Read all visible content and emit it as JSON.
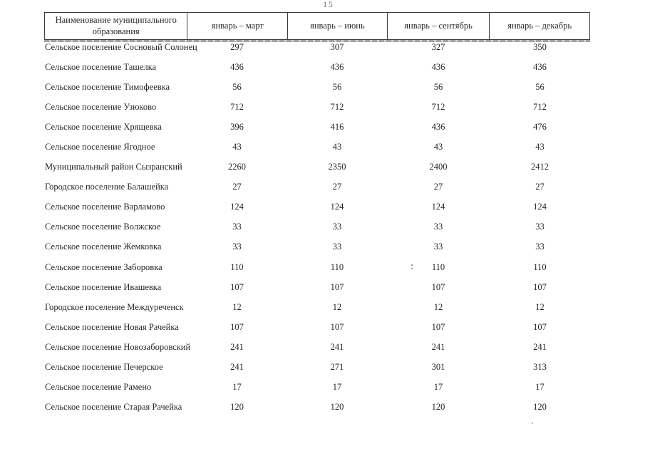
{
  "page": {
    "number": "15"
  },
  "table": {
    "columns": [
      "Наименование муниципального образования",
      "январь – март",
      "январь – июнь",
      "январь – сентябрь",
      "январь – декабрь"
    ],
    "rows": [
      {
        "name": "Сельское поселение Сосновый Солонец",
        "values": [
          "297",
          "307",
          "327",
          "350"
        ]
      },
      {
        "name": "Сельское поселение Ташелка",
        "values": [
          "436",
          "436",
          "436",
          "436"
        ]
      },
      {
        "name": "Сельское поселение Тимофеевка",
        "values": [
          "56",
          "56",
          "56",
          "56"
        ]
      },
      {
        "name": "Сельское поселение Узюково",
        "values": [
          "712",
          "712",
          "712",
          "712"
        ]
      },
      {
        "name": "Сельское поселение Хрящевка",
        "values": [
          "396",
          "416",
          "436",
          "476"
        ]
      },
      {
        "name": "Сельское поселение Ягодное",
        "values": [
          "43",
          "43",
          "43",
          "43"
        ]
      },
      {
        "name": "Муниципальный район Сызранский",
        "values": [
          "2260",
          "2350",
          "2400",
          "2412"
        ]
      },
      {
        "name": "Городское поселение Балашейка",
        "values": [
          "27",
          "27",
          "27",
          "27"
        ]
      },
      {
        "name": "Сельское поселение Варламово",
        "values": [
          "124",
          "124",
          "124",
          "124"
        ]
      },
      {
        "name": "Сельское поселение Волжское",
        "values": [
          "33",
          "33",
          "33",
          "33"
        ]
      },
      {
        "name": "Сельское поселение Жемковка",
        "values": [
          "33",
          "33",
          "33",
          "33"
        ]
      },
      {
        "name": "Сельское поселение Заборовка",
        "values": [
          "110",
          "110",
          "110",
          "110"
        ]
      },
      {
        "name": "Сельское поселение Ивашевка",
        "values": [
          "107",
          "107",
          "107",
          "107"
        ]
      },
      {
        "name": "Городское поселение Междуреченск",
        "values": [
          "12",
          "12",
          "12",
          "12"
        ]
      },
      {
        "name": "Сельское поселение Новая Рачейка",
        "values": [
          "107",
          "107",
          "107",
          "107"
        ]
      },
      {
        "name": "Сельское поселение Новозаборовский",
        "values": [
          "241",
          "241",
          "241",
          "241"
        ]
      },
      {
        "name": "Сельское поселение Печерское",
        "values": [
          "241",
          "271",
          "301",
          "313"
        ]
      },
      {
        "name": "Сельское поселение Рамено",
        "values": [
          "17",
          "17",
          "17",
          "17"
        ]
      },
      {
        "name": "Сельское поселение Старая Рачейка",
        "values": [
          "120",
          "120",
          "120",
          "120"
        ]
      }
    ]
  }
}
